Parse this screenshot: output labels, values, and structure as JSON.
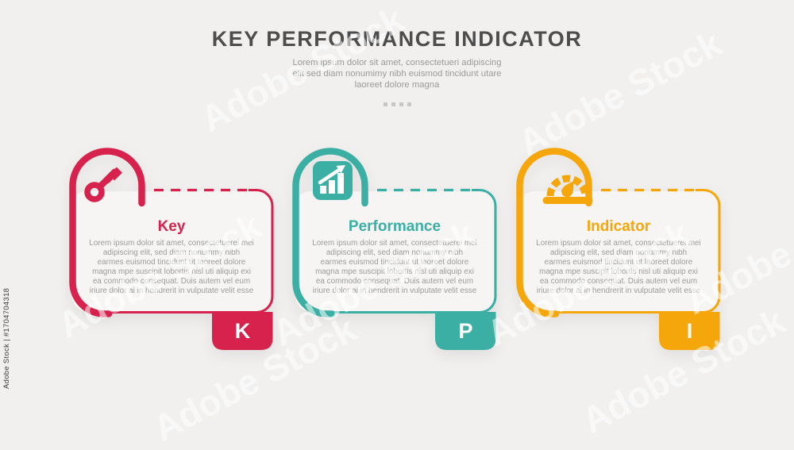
{
  "header": {
    "title": "KEY PERFORMANCE INDICATOR",
    "subtitle": "Lorem ipsum dolor sit amet, consectetueri adipiscing\nelit sed diam nonumimy nibh euismod tincidunt utare\nlaoreet dolore magna",
    "dots_count": 4,
    "title_color": "#4D4D4D",
    "subtitle_color": "#9A9A9A"
  },
  "cards": [
    {
      "id": "key",
      "title": "Key",
      "letter": "K",
      "color": "#D6224C",
      "icon": "key-icon",
      "body": "Lorem ipsum dolor sit amet, consectetuerei mei adipiscing elit, sed diam nonummy nibh earmes euismod tincidunt ut laoreet dolore magna mpe suscipit lobortis nisl uti aliquip exi ea commodo consequat. Duis autem vel eum iriure dolor ai in hendrerit in vulputate velit esse"
    },
    {
      "id": "performance",
      "title": "Performance",
      "letter": "P",
      "color": "#3BAFA3",
      "icon": "chart-increase-icon",
      "body": "Lorem ipsum dolor sit amet, consectetuerei mei adipiscing elit, sed diam nonummy nibh earmes euismod tincidunt ut laoreet dolore magna mpe suscipit lobortis nisl uti aliquip exi ea commodo consequat. Duis autem vel eum iriure dolor ai in hendrerit in vulputate velit esse"
    },
    {
      "id": "indicator",
      "title": "Indicator",
      "letter": "I",
      "color": "#F5A60B",
      "icon": "gauge-icon",
      "body": "Lorem ipsum dolor sit amet, consectetuerei mei adipiscing elit, sed diam nonummy nibh earmes euismod tincidunt ut laoreet dolore magna mpe suscipit lobortis nisl uti aliquip exi ea commodo consequat. Duis autem vel eum iriure dolor ai in hendrerit in vulputate velit esse"
    }
  ],
  "page": {
    "background": "#F1F0EF",
    "card_fill": "#F6F5F4",
    "body_text_color": "#9B9B9B",
    "dot_color": "#C7C7C7"
  },
  "watermark": {
    "side_text": "Adobe Stock | #1704704318",
    "diagonal_text": "Adobe Stock"
  }
}
